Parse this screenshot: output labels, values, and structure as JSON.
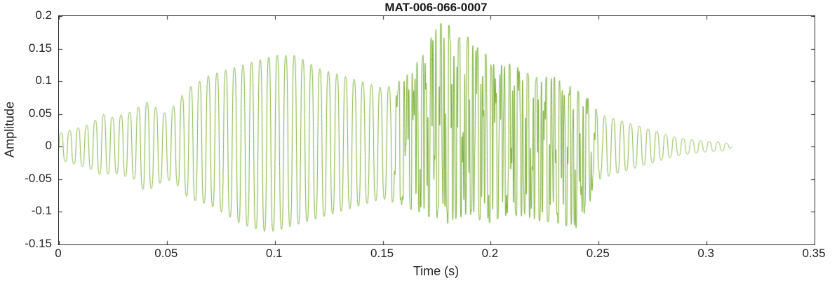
{
  "chart_data": {
    "type": "line",
    "title": "MAT-006-066-0007",
    "xlabel": "Time (s)",
    "ylabel": "Amplitude",
    "xlim": [
      0,
      0.35
    ],
    "ylim": [
      -0.15,
      0.2
    ],
    "xticks": [
      0,
      0.05,
      0.1,
      0.15,
      0.2,
      0.25,
      0.3,
      0.35
    ],
    "xtick_labels": [
      "0",
      "0.05",
      "0.1",
      "0.15",
      "0.2",
      "0.25",
      "0.3",
      "0.35"
    ],
    "yticks": [
      -0.15,
      -0.1,
      -0.05,
      0,
      0.05,
      0.1,
      0.15,
      0.2
    ],
    "ytick_labels": [
      "-0.15",
      "-0.1",
      "-0.05",
      "0",
      "0.05",
      "0.1",
      "0.15",
      "0.2"
    ],
    "grid": false,
    "legend": "none",
    "line_color": "#77AC30",
    "axis_color": "#262626",
    "background_color": "#ffffff",
    "series": [
      {
        "name": "audio-waveform",
        "kind": "amplitude-envelope-waveform",
        "carrier_hz": 250,
        "dense_band_s": [
          0.16,
          0.245
        ],
        "signal_end_s": 0.312,
        "envelope": {
          "t": [
            0.0,
            0.005,
            0.01,
            0.015,
            0.02,
            0.025,
            0.03,
            0.035,
            0.04,
            0.045,
            0.05,
            0.055,
            0.06,
            0.065,
            0.07,
            0.075,
            0.08,
            0.085,
            0.09,
            0.095,
            0.1,
            0.105,
            0.11,
            0.115,
            0.12,
            0.125,
            0.13,
            0.135,
            0.14,
            0.145,
            0.15,
            0.155,
            0.16,
            0.165,
            0.17,
            0.175,
            0.18,
            0.185,
            0.19,
            0.195,
            0.2,
            0.205,
            0.21,
            0.215,
            0.22,
            0.225,
            0.23,
            0.235,
            0.24,
            0.245,
            0.25,
            0.255,
            0.26,
            0.265,
            0.27,
            0.275,
            0.28,
            0.285,
            0.29,
            0.295,
            0.3,
            0.305,
            0.31,
            0.312
          ],
          "upper": [
            0.02,
            0.025,
            0.03,
            0.035,
            0.05,
            0.045,
            0.05,
            0.055,
            0.07,
            0.06,
            0.05,
            0.07,
            0.09,
            0.1,
            0.11,
            0.115,
            0.12,
            0.125,
            0.13,
            0.135,
            0.14,
            0.14,
            0.14,
            0.13,
            0.12,
            0.115,
            0.11,
            0.105,
            0.1,
            0.095,
            0.09,
            0.095,
            0.1,
            0.12,
            0.14,
            0.18,
            0.18,
            0.16,
            0.16,
            0.14,
            0.13,
            0.12,
            0.12,
            0.11,
            0.1,
            0.1,
            0.1,
            0.09,
            0.08,
            0.07,
            0.05,
            0.045,
            0.04,
            0.035,
            0.03,
            0.025,
            0.02,
            0.015,
            0.012,
            0.01,
            0.008,
            0.007,
            0.005,
            0.0
          ],
          "lower": [
            -0.02,
            -0.025,
            -0.03,
            -0.035,
            -0.045,
            -0.04,
            -0.045,
            -0.05,
            -0.07,
            -0.06,
            -0.05,
            -0.06,
            -0.08,
            -0.085,
            -0.09,
            -0.1,
            -0.11,
            -0.12,
            -0.125,
            -0.13,
            -0.13,
            -0.125,
            -0.12,
            -0.115,
            -0.11,
            -0.105,
            -0.1,
            -0.095,
            -0.09,
            -0.085,
            -0.08,
            -0.085,
            -0.09,
            -0.09,
            -0.1,
            -0.1,
            -0.11,
            -0.1,
            -0.1,
            -0.105,
            -0.11,
            -0.1,
            -0.1,
            -0.1,
            -0.105,
            -0.11,
            -0.11,
            -0.115,
            -0.12,
            -0.09,
            -0.05,
            -0.045,
            -0.04,
            -0.035,
            -0.03,
            -0.025,
            -0.02,
            -0.015,
            -0.012,
            -0.01,
            -0.008,
            -0.007,
            -0.005,
            0.0
          ]
        }
      }
    ]
  }
}
